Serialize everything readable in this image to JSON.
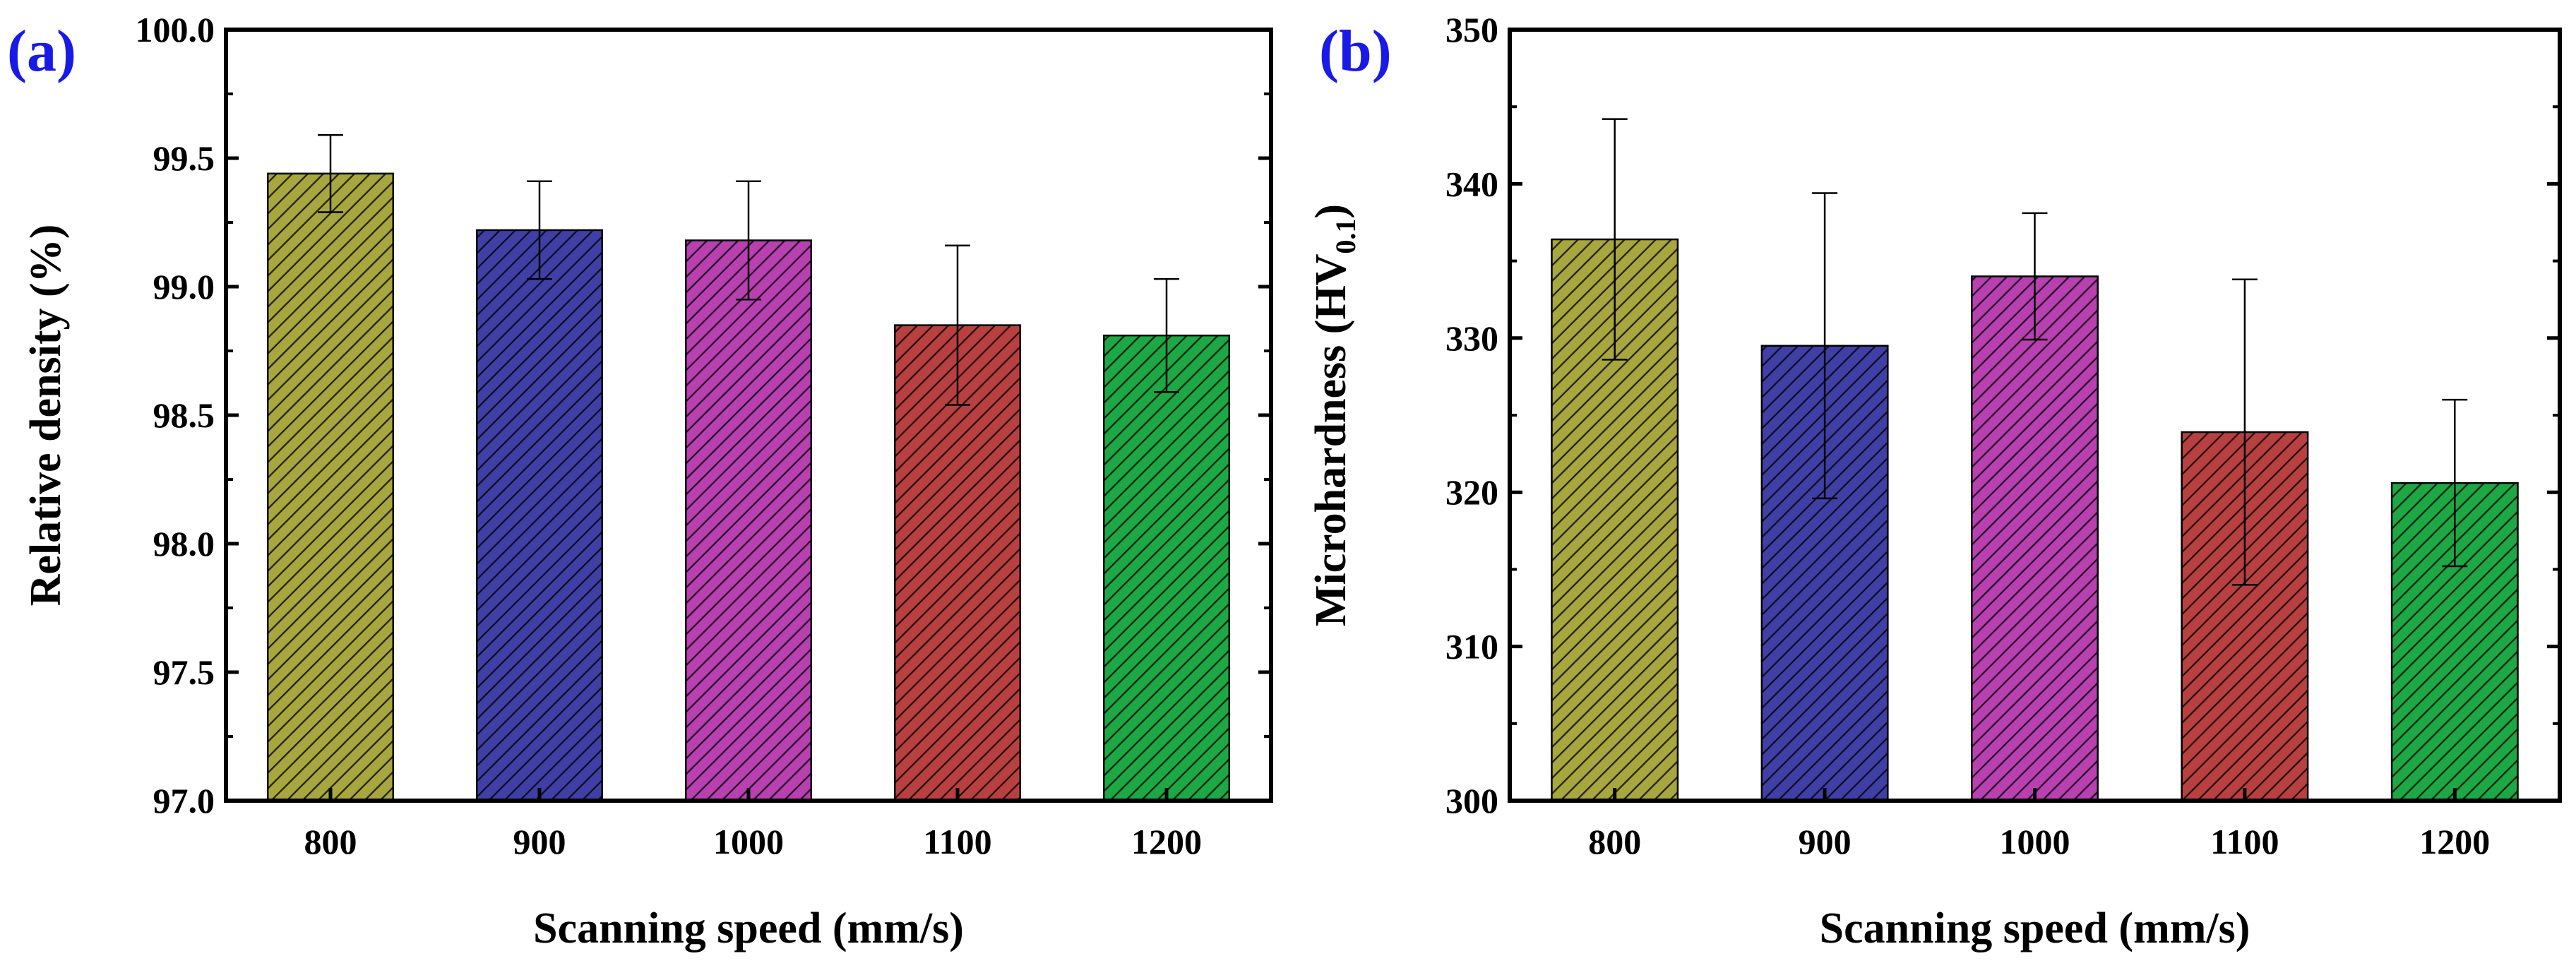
{
  "chart_data": [
    {
      "type": "bar",
      "panel_label": "(a)",
      "categories": [
        "800",
        "900",
        "1000",
        "1100",
        "1200"
      ],
      "values": [
        99.44,
        99.22,
        99.18,
        98.85,
        98.81
      ],
      "errors": [
        0.15,
        0.19,
        0.23,
        0.31,
        0.22
      ],
      "colors": [
        "#A8A63E",
        "#3F3FA6",
        "#B840B0",
        "#B84040",
        "#1EA845"
      ],
      "xlabel": "Scanning speed (mm/s)",
      "ylabel": "Relative density (%)",
      "ylim": [
        97.0,
        100.0
      ],
      "yticks": [
        97.0,
        97.5,
        98.0,
        98.5,
        99.0,
        99.5,
        100.0
      ],
      "ytick_labels": [
        "97.0",
        "97.5",
        "98.0",
        "98.5",
        "99.0",
        "99.5",
        "100.0"
      ]
    },
    {
      "type": "bar",
      "panel_label": "(b)",
      "categories": [
        "800",
        "900",
        "1000",
        "1100",
        "1200"
      ],
      "values": [
        336.4,
        329.5,
        334.0,
        323.9,
        320.6
      ],
      "errors": [
        7.8,
        9.9,
        4.1,
        9.9,
        5.4
      ],
      "colors": [
        "#A8A63E",
        "#3F3FA6",
        "#B840B0",
        "#B84040",
        "#1EA845"
      ],
      "xlabel": "Scanning speed (mm/s)",
      "ylabel": "Microhardness (HV",
      "ylabel_sub": "0.1",
      "ylabel_close": ")",
      "ylim": [
        300,
        350
      ],
      "yticks": [
        300,
        310,
        320,
        330,
        340,
        350
      ],
      "ytick_labels": [
        "300",
        "310",
        "320",
        "330",
        "340",
        "350"
      ]
    }
  ],
  "style": {
    "panel_label_color": "#1A1AE6",
    "axis_color": "#000000"
  }
}
